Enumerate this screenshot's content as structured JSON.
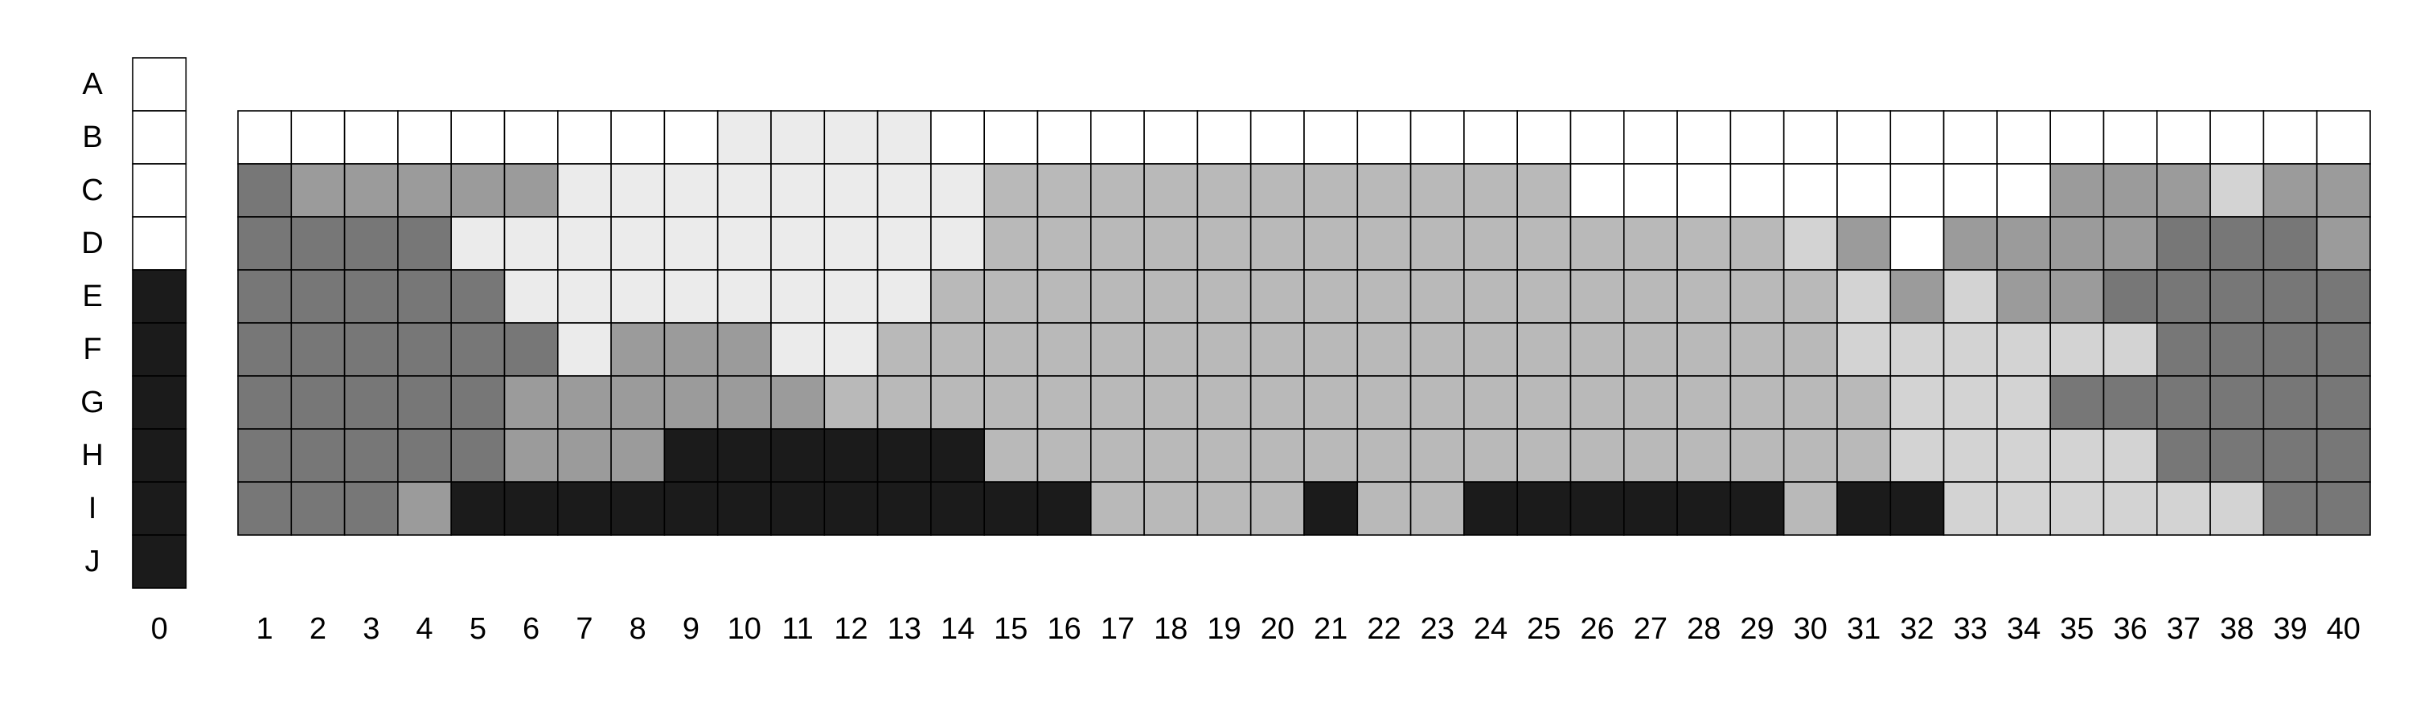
{
  "chart_data": {
    "type": "heatmap",
    "title": "",
    "xlabel": "",
    "ylabel": "",
    "rows": [
      "A",
      "B",
      "C",
      "D",
      "E",
      "F",
      "G",
      "H",
      "I",
      "J"
    ],
    "key_column": {
      "x": 0,
      "values": [
        0,
        0,
        0,
        0,
        5,
        5,
        5,
        5,
        5,
        5
      ]
    },
    "columns": [
      1,
      2,
      3,
      4,
      5,
      6,
      7,
      8,
      9,
      10,
      11,
      12,
      13,
      14,
      15,
      16,
      17,
      18,
      19,
      20,
      21,
      22,
      23,
      24,
      25,
      26,
      27,
      28,
      29,
      30,
      31,
      32,
      33,
      34,
      35,
      36,
      37,
      38,
      39,
      40
    ],
    "grid_rows": [
      "B",
      "C",
      "D",
      "E",
      "F",
      "G",
      "H",
      "I"
    ],
    "values": [
      [
        0,
        0,
        0,
        0,
        0,
        0,
        0,
        0,
        0,
        1,
        1,
        1,
        1,
        0,
        0,
        0,
        0,
        0,
        0,
        0,
        0,
        0,
        0,
        0,
        0,
        0,
        0,
        0,
        0,
        0,
        0,
        0,
        0,
        0,
        0,
        0,
        0,
        0,
        0,
        0
      ],
      [
        4,
        3,
        3,
        3,
        3,
        3,
        1,
        1,
        1,
        1,
        1,
        1,
        1,
        1,
        2,
        2,
        2,
        2,
        2,
        2,
        2,
        2,
        2,
        2,
        2,
        0,
        0,
        0,
        0,
        0,
        0,
        0,
        0,
        0,
        3,
        3,
        3,
        2,
        3,
        3
      ],
      [
        4,
        4,
        4,
        4,
        1,
        1,
        1,
        1,
        1,
        1,
        1,
        1,
        1,
        1,
        2,
        2,
        2,
        2,
        2,
        2,
        2,
        2,
        2,
        2,
        2,
        2,
        2,
        2,
        2,
        2,
        3,
        0,
        3,
        3,
        3,
        3,
        4,
        4,
        4,
        3
      ],
      [
        4,
        4,
        4,
        4,
        4,
        1,
        1,
        1,
        1,
        1,
        1,
        1,
        1,
        2,
        2,
        2,
        2,
        2,
        2,
        2,
        2,
        2,
        2,
        2,
        2,
        2,
        2,
        2,
        2,
        2,
        2,
        3,
        2,
        3,
        3,
        4,
        4,
        4,
        4,
        4
      ],
      [
        4,
        4,
        4,
        4,
        4,
        4,
        1,
        3,
        3,
        3,
        1,
        1,
        2,
        2,
        2,
        2,
        2,
        2,
        2,
        2,
        2,
        2,
        2,
        2,
        2,
        2,
        2,
        2,
        2,
        2,
        2,
        2,
        2,
        2,
        2,
        2,
        4,
        4,
        4,
        4
      ],
      [
        4,
        4,
        4,
        4,
        4,
        3,
        3,
        3,
        3,
        3,
        3,
        2,
        2,
        2,
        2,
        2,
        2,
        2,
        2,
        2,
        2,
        2,
        2,
        2,
        2,
        2,
        2,
        2,
        2,
        2,
        2,
        2,
        2,
        2,
        4,
        4,
        4,
        4,
        4,
        4
      ],
      [
        4,
        4,
        4,
        4,
        4,
        3,
        3,
        3,
        5,
        5,
        5,
        5,
        5,
        5,
        2,
        2,
        2,
        2,
        2,
        2,
        2,
        2,
        2,
        2,
        2,
        2,
        2,
        2,
        2,
        2,
        2,
        2,
        2,
        2,
        2,
        2,
        4,
        4,
        4,
        4
      ],
      [
        4,
        4,
        4,
        3,
        5,
        5,
        5,
        5,
        5,
        5,
        5,
        5,
        5,
        5,
        5,
        5,
        2,
        2,
        2,
        2,
        5,
        2,
        2,
        5,
        5,
        5,
        5,
        5,
        5,
        2,
        5,
        5,
        2,
        2,
        2,
        2,
        2,
        2,
        4,
        4
      ]
    ],
    "levels": [
      0,
      1,
      2,
      3,
      4,
      5
    ],
    "colors": [
      "#ffffff",
      "#ebebeb",
      "#b9b9b9",
      "#9b9b9b",
      "#777777",
      "#1b1b1b"
    ],
    "row_colors": {
      "G": [
        "#777777",
        "#777777",
        "#777777",
        "#777777",
        "#777777",
        "#9b9b9b",
        "#9b9b9b",
        "#9b9b9b",
        "#9b9b9b",
        "#9b9b9b",
        "#9b9b9b",
        "#b9b9b9",
        "#b9b9b9",
        "#b9b9b9",
        "#b9b9b9",
        "#b9b9b9",
        "#b9b9b9",
        "#b9b9b9",
        "#b9b9b9",
        "#b9b9b9",
        "#b9b9b9",
        "#b9b9b9",
        "#b9b9b9",
        "#b9b9b9",
        "#b9b9b9",
        "#b9b9b9",
        "#b9b9b9",
        "#b9b9b9",
        "#b9b9b9",
        "#b9b9b9",
        "#b9b9b9",
        "#d3d3d3",
        "#d3d3d3",
        "#d3d3d3",
        "#777777",
        "#777777",
        "#777777",
        "#777777",
        "#777777",
        "#777777"
      ]
    },
    "light_cells": [
      {
        "row": "C",
        "col": 38,
        "color": "#d3d3d3"
      },
      {
        "row": "D",
        "col": 30,
        "color": "#d3d3d3"
      },
      {
        "row": "E",
        "col": 31,
        "color": "#d3d3d3"
      },
      {
        "row": "E",
        "col": 33,
        "color": "#d3d3d3"
      },
      {
        "row": "F",
        "col": 31,
        "color": "#d3d3d3"
      },
      {
        "row": "F",
        "col": 32,
        "color": "#d3d3d3"
      },
      {
        "row": "F",
        "col": 33,
        "color": "#d3d3d3"
      },
      {
        "row": "F",
        "col": 34,
        "color": "#d3d3d3"
      },
      {
        "row": "F",
        "col": 35,
        "color": "#d3d3d3"
      },
      {
        "row": "F",
        "col": 36,
        "color": "#d3d3d3"
      },
      {
        "row": "H",
        "col": 32,
        "color": "#d3d3d3"
      },
      {
        "row": "H",
        "col": 33,
        "color": "#d3d3d3"
      },
      {
        "row": "H",
        "col": 34,
        "color": "#d3d3d3"
      },
      {
        "row": "H",
        "col": 35,
        "color": "#d3d3d3"
      },
      {
        "row": "H",
        "col": 36,
        "color": "#d3d3d3"
      },
      {
        "row": "I",
        "col": 33,
        "color": "#d3d3d3"
      },
      {
        "row": "I",
        "col": 34,
        "color": "#d3d3d3"
      },
      {
        "row": "I",
        "col": 35,
        "color": "#d3d3d3"
      },
      {
        "row": "I",
        "col": 36,
        "color": "#d3d3d3"
      },
      {
        "row": "I",
        "col": 37,
        "color": "#d3d3d3"
      },
      {
        "row": "I",
        "col": 38,
        "color": "#d3d3d3"
      }
    ],
    "grid": true,
    "legend": "none"
  }
}
